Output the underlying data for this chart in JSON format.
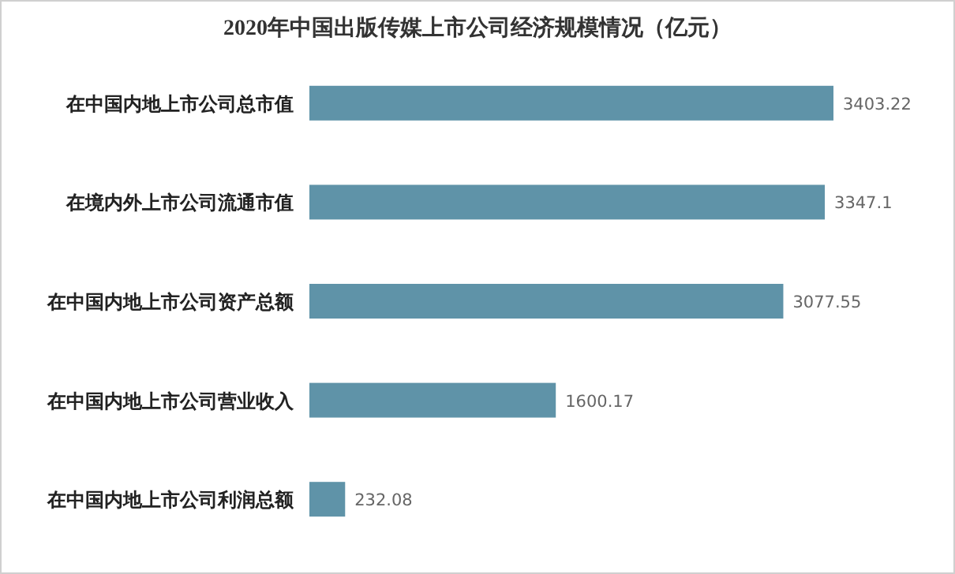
{
  "chart_data": {
    "type": "bar",
    "orientation": "horizontal",
    "title": "2020年中国出版传媒上市公司经济规模情况（亿元）",
    "categories": [
      "在中国内地上市公司总市值",
      "在境内外上市公司流通市值",
      "在中国内地上市公司资产总额",
      "在中国内地上市公司营业收入",
      "在中国内地上市公司利润总额"
    ],
    "values": [
      3403.22,
      3347.1,
      3077.55,
      1600.17,
      232.08
    ],
    "color": "#5f93a8",
    "data_labels": true,
    "tick_labels": "y"
  }
}
